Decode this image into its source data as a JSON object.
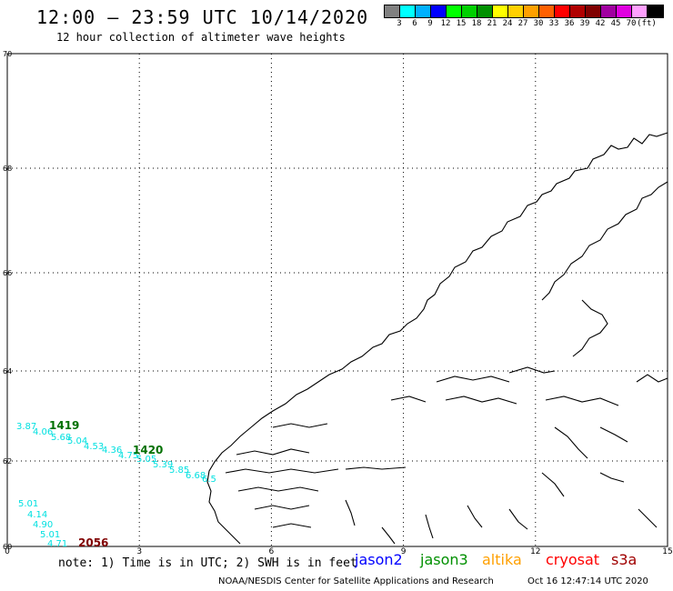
{
  "header": {
    "title": "12:00 — 23:59 UTC 10/14/2020",
    "subtitle": "12 hour collection of altimeter wave heights"
  },
  "color_scale": {
    "colors": [
      "#808080",
      "#00ffff",
      "#00b0ff",
      "#0000ff",
      "#00ff00",
      "#00d000",
      "#009000",
      "#ffff00",
      "#ffd000",
      "#ffa000",
      "#ff6000",
      "#ff0000",
      "#b00000",
      "#800000",
      "#a000a0",
      "#e000e0",
      "#ffa0ff",
      "#000000"
    ],
    "labels": [
      "3",
      "6",
      "9",
      "12",
      "15",
      "18",
      "21",
      "24",
      "27",
      "30",
      "33",
      "36",
      "39",
      "42",
      "45",
      "70",
      "(ft)"
    ]
  },
  "axes": {
    "lat_ticks": [
      "70",
      "68",
      "66",
      "64",
      "62",
      "60"
    ],
    "lon_ticks": [
      "0",
      "3",
      "6",
      "9",
      "12",
      "15"
    ]
  },
  "observations": {
    "cyan_values_track1": [
      "3.87",
      "4.06",
      "5.68",
      "5.04",
      "4.53",
      "4.36",
      "4.75",
      "5.05",
      "5.39",
      "5.85",
      "6.68",
      "6.5"
    ],
    "cyan_values_track2": [
      "5.01",
      "4.14",
      "4.90",
      "5.01",
      "4.71"
    ],
    "pass_labels": [
      {
        "text": "1419",
        "color": "#007000"
      },
      {
        "text": "1420",
        "color": "#007000"
      },
      {
        "text": "2056",
        "color": "#800000"
      }
    ],
    "value_color": "#00e0e0"
  },
  "note": "note: 1) Time is in UTC; 2) SWH is in feet",
  "legend": [
    {
      "label": "jason2",
      "color": "#0000ff"
    },
    {
      "label": "jason3",
      "color": "#009000"
    },
    {
      "label": "altika",
      "color": "#ffa000"
    },
    {
      "label": "cryosat",
      "color": "#ff0000"
    },
    {
      "label": "s3a",
      "color": "#a00000"
    }
  ],
  "footer": {
    "credit": "NOAA/NESDIS Center for Satellite Applications and Research",
    "timestamp": "Oct 16 12:47:14 UTC 2020"
  }
}
